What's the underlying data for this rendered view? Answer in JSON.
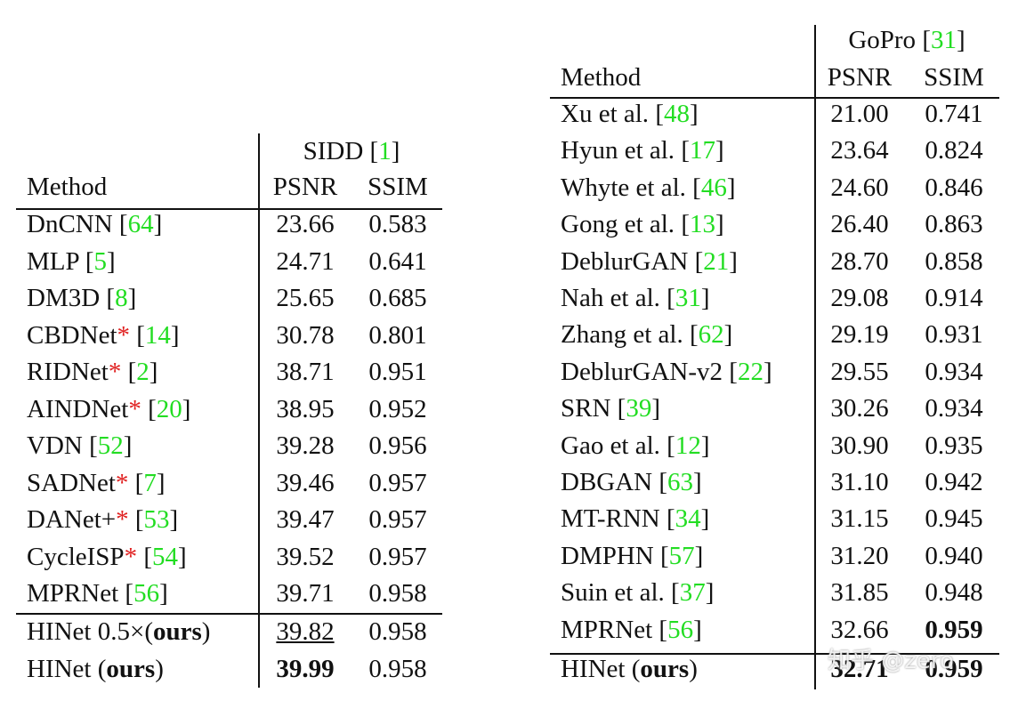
{
  "sidd": {
    "title": "SIDD [1]",
    "columns": [
      "Method",
      "PSNR",
      "SSIM"
    ],
    "rows": [
      {
        "method": "DnCNN [64]",
        "psnr": "23.66",
        "ssim": "0.583"
      },
      {
        "method": "MLP [5]",
        "psnr": "24.71",
        "ssim": "0.641"
      },
      {
        "method": "DM3D [8]",
        "psnr": "25.65",
        "ssim": "0.685"
      },
      {
        "method": "CBDNet* [14]",
        "psnr": "30.78",
        "ssim": "0.801"
      },
      {
        "method": "RIDNet* [2]",
        "psnr": "38.71",
        "ssim": "0.951"
      },
      {
        "method": "AINDNet* [20]",
        "psnr": "38.95",
        "ssim": "0.952"
      },
      {
        "method": "VDN [52]",
        "psnr": "39.28",
        "ssim": "0.956"
      },
      {
        "method": "SADNet* [7]",
        "psnr": "39.46",
        "ssim": "0.957"
      },
      {
        "method": "DANet+* [53]",
        "psnr": "39.47",
        "ssim": "0.957"
      },
      {
        "method": "CycleISP* [54]",
        "psnr": "39.52",
        "ssim": "0.957"
      },
      {
        "method": "MPRNet [56]",
        "psnr": "39.71",
        "ssim": "0.958"
      }
    ],
    "ours_rows": [
      {
        "method": "HINet 0.5×(ours)",
        "psnr": "39.82",
        "ssim": "0.958",
        "underline": [
          "psnr"
        ]
      },
      {
        "method": "HINet (ours)",
        "psnr": "39.99",
        "ssim": "0.958",
        "bold": [
          "psnr"
        ]
      }
    ]
  },
  "gopro": {
    "title": "GoPro [31]",
    "columns": [
      "Method",
      "PSNR",
      "SSIM"
    ],
    "rows": [
      {
        "method": "Xu et al. [48]",
        "psnr": "21.00",
        "ssim": "0.741"
      },
      {
        "method": "Hyun et al. [17]",
        "psnr": "23.64",
        "ssim": "0.824"
      },
      {
        "method": "Whyte et al. [46]",
        "psnr": "24.60",
        "ssim": "0.846"
      },
      {
        "method": "Gong et al. [13]",
        "psnr": "26.40",
        "ssim": "0.863"
      },
      {
        "method": "DeblurGAN [21]",
        "psnr": "28.70",
        "ssim": "0.858"
      },
      {
        "method": "Nah et al. [31]",
        "psnr": "29.08",
        "ssim": "0.914"
      },
      {
        "method": "Zhang et al. [62]",
        "psnr": "29.19",
        "ssim": "0.931"
      },
      {
        "method": "DeblurGAN-v2 [22]",
        "psnr": "29.55",
        "ssim": "0.934"
      },
      {
        "method": "SRN [39]",
        "psnr": "30.26",
        "ssim": "0.934"
      },
      {
        "method": "Gao et al. [12]",
        "psnr": "30.90",
        "ssim": "0.935"
      },
      {
        "method": "DBGAN [63]",
        "psnr": "31.10",
        "ssim": "0.942"
      },
      {
        "method": "MT-RNN [34]",
        "psnr": "31.15",
        "ssim": "0.945"
      },
      {
        "method": "DMPHN [57]",
        "psnr": "31.20",
        "ssim": "0.940"
      },
      {
        "method": "Suin et al. [37]",
        "psnr": "31.85",
        "ssim": "0.948"
      },
      {
        "method": "MPRNet [56]",
        "psnr": "32.66",
        "ssim": "0.959",
        "bold": [
          "ssim"
        ]
      }
    ],
    "ours_rows": [
      {
        "method": "HINet (ours)",
        "psnr": "32.71",
        "ssim": "0.959",
        "bold": [
          "psnr",
          "ssim"
        ]
      }
    ]
  },
  "watermark": "知乎 @zero"
}
